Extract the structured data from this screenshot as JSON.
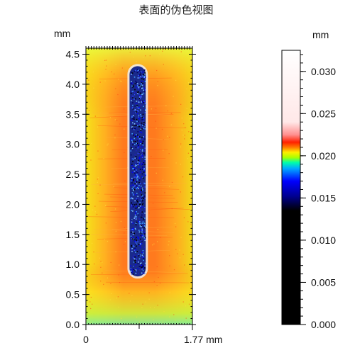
{
  "title": "表面的伪色视图",
  "chart_data": {
    "type": "heatmap",
    "title": "表面的伪色视图",
    "x_axis": {
      "unit": "mm",
      "range": [
        0,
        1.77
      ],
      "tick_labels": [
        "0",
        "1.77 mm"
      ]
    },
    "y_axis": {
      "unit": "mm",
      "range": [
        0,
        4.6
      ],
      "ticks": [
        0.0,
        0.5,
        1.0,
        1.5,
        2.0,
        2.5,
        3.0,
        3.5,
        4.0,
        4.5
      ],
      "tick_labels": [
        "0.0",
        "0.5",
        "1.0",
        "1.5",
        "2.0",
        "2.5",
        "3.0",
        "3.5",
        "4.0",
        "4.5"
      ]
    },
    "colorbar": {
      "unit": "mm",
      "range": [
        0,
        0.0325
      ],
      "ticks": [
        0,
        0.005,
        0.01,
        0.015,
        0.02,
        0.025,
        0.03
      ],
      "tick_labels": [
        "0.000",
        "0.005",
        "0.010",
        "0.015",
        "0.020",
        "0.025",
        "0.030"
      ],
      "colormap": [
        {
          "value": 0.0,
          "color": "#000000"
        },
        {
          "value": 0.0135,
          "color": "#000000"
        },
        {
          "value": 0.0152,
          "color": "#000090"
        },
        {
          "value": 0.017,
          "color": "#0000ff"
        },
        {
          "value": 0.0185,
          "color": "#00aaff"
        },
        {
          "value": 0.0192,
          "color": "#00ffaa"
        },
        {
          "value": 0.0198,
          "color": "#aaff00"
        },
        {
          "value": 0.0204,
          "color": "#ffee00"
        },
        {
          "value": 0.021,
          "color": "#ff7a00"
        },
        {
          "value": 0.0216,
          "color": "#ff2000"
        },
        {
          "value": 0.0225,
          "color": "#ff9090"
        },
        {
          "value": 0.024,
          "color": "#ffe8e8"
        },
        {
          "value": 0.0325,
          "color": "#ffffff"
        }
      ]
    },
    "surface": {
      "background_color": "#ff7a1e",
      "edge_color": "#f2d21a",
      "bottom_color": "#c8f030",
      "groove": {
        "x_center": 0.86,
        "y_start": 0.8,
        "y_end": 4.3,
        "width": 0.27,
        "color": "#1a2a8c"
      }
    }
  }
}
